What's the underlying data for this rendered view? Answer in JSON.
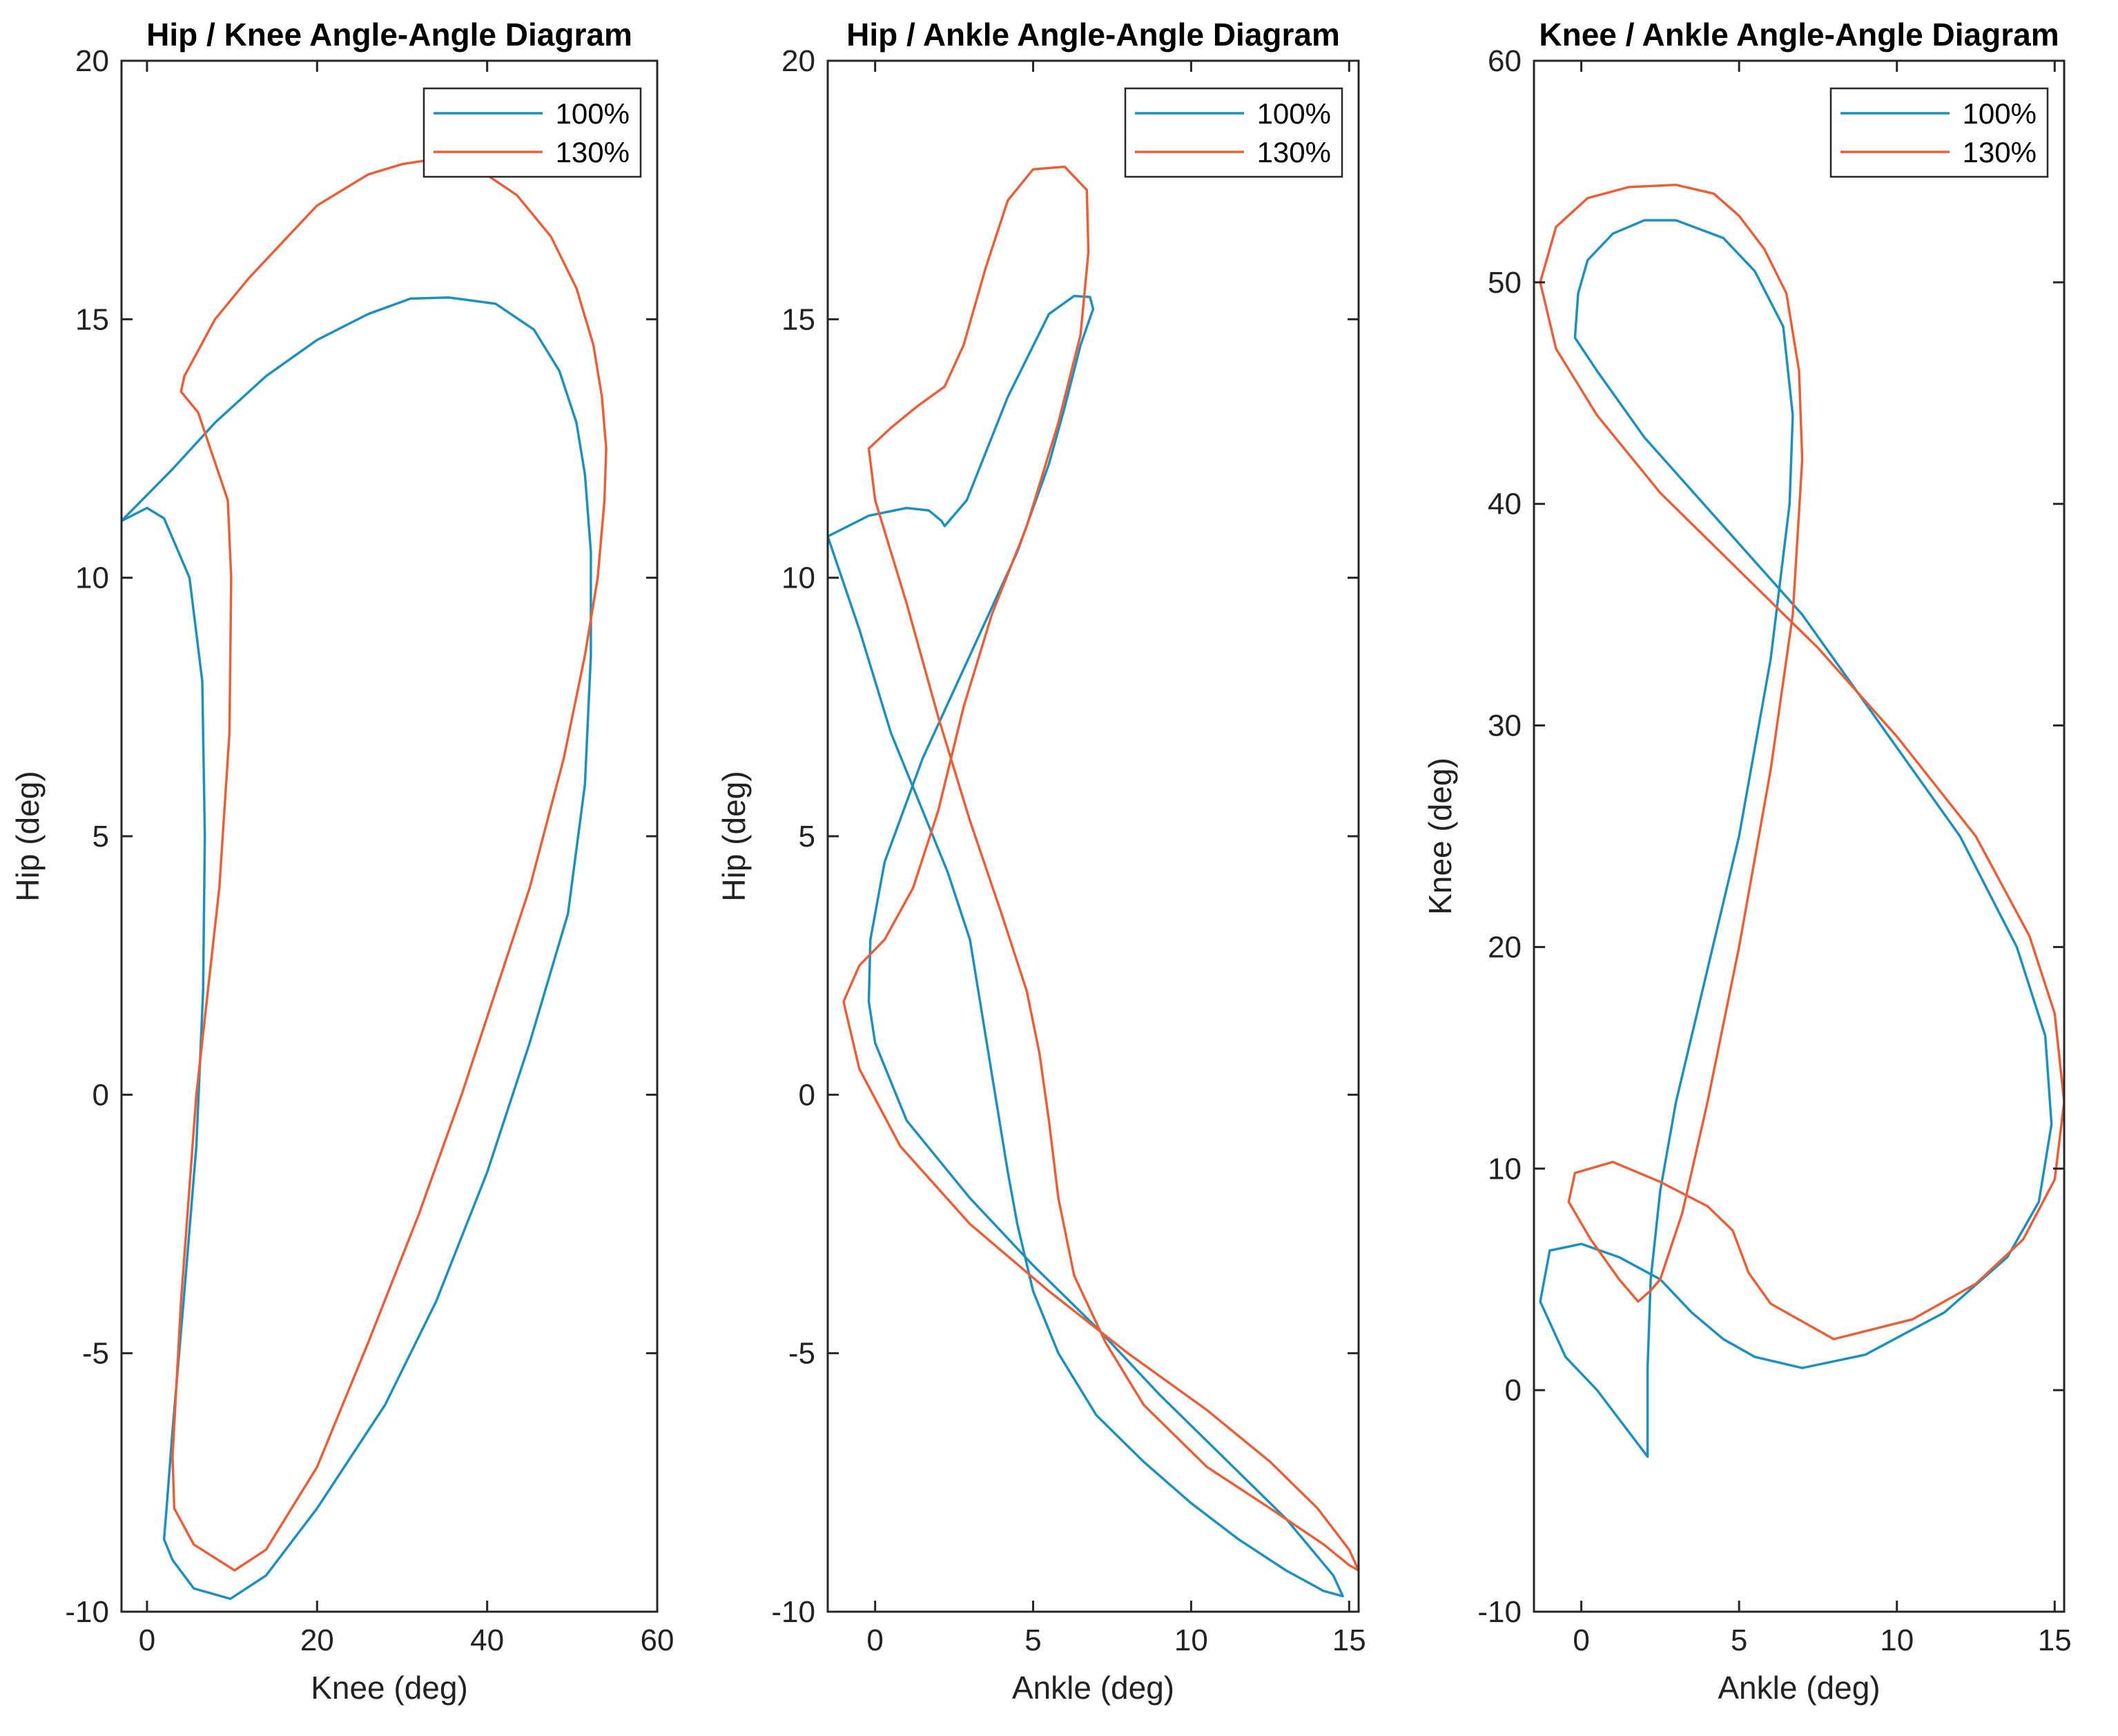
{
  "colors": {
    "series_100": "#1f8fbd",
    "series_130": "#e8603a"
  },
  "chart_data": [
    {
      "type": "line",
      "title": "Hip / Knee Angle-Angle Diagram",
      "xlabel": "Knee (deg)",
      "ylabel": "Hip (deg)",
      "xlim": [
        -3,
        60
      ],
      "ylim": [
        -10,
        20
      ],
      "xticks": [
        0,
        20,
        40,
        60
      ],
      "yticks": [
        -10,
        -5,
        0,
        5,
        10,
        15,
        20
      ],
      "legend_position": "top-right",
      "series": [
        {
          "name": "100%",
          "x": [
            -3,
            0,
            2,
            5,
            6.5,
            6.8,
            6.6,
            5.8,
            4.3,
            3,
            2.3,
            2,
            3,
            5.5,
            9.8,
            14,
            20,
            28,
            34,
            40,
            45,
            49.5,
            51.5,
            52.2,
            52.2,
            51.5,
            50.5,
            48.5,
            45.5,
            41,
            35.5,
            31,
            26,
            20,
            14,
            8,
            3,
            -3
          ],
          "y": [
            11.1,
            11.35,
            11.15,
            10,
            8,
            5,
            2,
            -1,
            -4,
            -6.5,
            -8,
            -8.6,
            -9,
            -9.55,
            -9.75,
            -9.3,
            -8,
            -6,
            -4,
            -1.5,
            1,
            3.5,
            6,
            8.5,
            10.5,
            12,
            13,
            14,
            14.8,
            15.3,
            15.42,
            15.4,
            15.1,
            14.6,
            13.9,
            13,
            12.1,
            11.1
          ]
        },
        {
          "name": "130%",
          "x": [
            6,
            9.5,
            9.9,
            9.7,
            8.5,
            5.8,
            4,
            3,
            3.2,
            5.5,
            10.3,
            14,
            20,
            26,
            32,
            37,
            41,
            45,
            49,
            51.5,
            53,
            53.8,
            54,
            53.5,
            52.5,
            50.5,
            47.5,
            43.5,
            39,
            34,
            30,
            26,
            20,
            16,
            12,
            8,
            4.4,
            4,
            6
          ],
          "y": [
            13.2,
            11.5,
            10,
            7,
            4,
            0,
            -4,
            -7,
            -8,
            -8.7,
            -9.2,
            -8.8,
            -7.2,
            -4.8,
            -2.3,
            0,
            2,
            4,
            6.5,
            8.5,
            10,
            11.5,
            12.5,
            13.5,
            14.5,
            15.6,
            16.6,
            17.4,
            17.9,
            18.1,
            18,
            17.8,
            17.2,
            16.5,
            15.8,
            15,
            13.9,
            13.6,
            13.2
          ]
        }
      ]
    },
    {
      "type": "line",
      "title": "Hip / Ankle Angle-Angle Diagram",
      "xlabel": "Ankle (deg)",
      "ylabel": "Hip (deg)",
      "xlim": [
        -1.5,
        15.3
      ],
      "ylim": [
        -10,
        20
      ],
      "xticks": [
        0,
        5,
        10,
        15
      ],
      "yticks": [
        -10,
        -5,
        0,
        5,
        10,
        15,
        20
      ],
      "legend_position": "top-right",
      "series": [
        {
          "name": "100%",
          "x": [
            2.1,
            1.7,
            1,
            -0.2,
            -1.5,
            -0.5,
            0.5,
            1.5,
            2.3,
            3,
            3.4,
            3.8,
            4.2,
            4.5,
            5,
            5.8,
            7,
            8.5,
            10,
            11.5,
            13,
            14.2,
            14.8,
            14.5,
            13,
            11,
            9,
            7,
            5,
            3,
            1,
            0,
            -0.2,
            -0.15,
            0.3,
            1.5,
            3,
            4.5,
            5.5,
            6,
            6.5,
            6.9,
            6.8,
            6.3,
            5.5,
            4.2,
            2.9,
            2.2,
            2.1
          ],
          "y": [
            11.1,
            11.3,
            11.35,
            11.2,
            10.8,
            9,
            7,
            5.5,
            4.3,
            3,
            1.5,
            0,
            -1.5,
            -2.5,
            -3.8,
            -5,
            -6.2,
            -7.1,
            -7.9,
            -8.6,
            -9.2,
            -9.6,
            -9.7,
            -9.3,
            -8.2,
            -7,
            -5.8,
            -4.5,
            -3.3,
            -2,
            -0.5,
            1,
            1.8,
            3,
            4.5,
            6.5,
            8.5,
            10.5,
            12.2,
            13.3,
            14.5,
            15.2,
            15.43,
            15.45,
            15.1,
            13.5,
            11.5,
            11,
            11.1
          ],
          "z": []
        },
        {
          "name": "130%",
          "x": [
            -0.2,
            0.5,
            1.3,
            2.2,
            2.8,
            3.5,
            4.2,
            5,
            6,
            6.7,
            6.75,
            6.5,
            5.8,
            4.8,
            3.7,
            2.8,
            2,
            1.2,
            0.3,
            -0.5,
            -1,
            -0.5,
            0.8,
            3,
            5.5,
            8,
            10.5,
            12.5,
            14,
            15,
            15.3,
            15,
            14.2,
            12.5,
            10.5,
            8.5,
            7.3,
            6.3,
            5.8,
            5.5,
            5.2,
            4.8,
            4,
            3,
            2,
            1,
            0,
            -0.2
          ],
          "y": [
            12.5,
            12.9,
            13.3,
            13.7,
            14.5,
            16,
            17.3,
            17.9,
            17.95,
            17.5,
            16.3,
            14.7,
            13,
            11,
            9.3,
            7.5,
            5.5,
            4,
            3,
            2.5,
            1.8,
            0.5,
            -1,
            -2.5,
            -3.8,
            -5,
            -6.1,
            -7.1,
            -8,
            -8.8,
            -9.2,
            -9.1,
            -8.7,
            -8,
            -7.2,
            -6,
            -4.8,
            -3.5,
            -2,
            -0.5,
            0.8,
            2,
            3.5,
            5.3,
            7.3,
            9.5,
            11.5,
            12.5
          ]
        }
      ]
    },
    {
      "type": "line",
      "title": "Knee / Ankle Angle-Angle Diagram",
      "xlabel": "Ankle (deg)",
      "ylabel": "Knee (deg)",
      "xlim": [
        -1.5,
        15.3
      ],
      "ylim": [
        -10,
        60
      ],
      "xticks": [
        0,
        5,
        10,
        15
      ],
      "yticks": [
        -10,
        0,
        10,
        20,
        30,
        40,
        50,
        60
      ],
      "legend_position": "top-right",
      "series": [
        {
          "name": "100%",
          "x": [
            2.1,
            1.3,
            0.5,
            -0.5,
            -1.3,
            -1,
            0,
            1.2,
            2.5,
            3.5,
            4.5,
            5.5,
            7,
            9,
            11.5,
            13.5,
            14.5,
            14.9,
            14.7,
            13.8,
            12,
            9.5,
            7,
            4.5,
            2,
            0.5,
            -0.2,
            -0.1,
            0.2,
            1,
            2,
            3,
            4.5,
            5.5,
            6.4,
            6.7,
            6.6,
            6,
            5,
            4,
            3,
            2.5,
            2.2,
            2.1,
            2.1
          ],
          "y": [
            -3,
            -1.5,
            0,
            1.5,
            4,
            6.3,
            6.6,
            6,
            5,
            3.5,
            2.3,
            1.5,
            1,
            1.6,
            3.5,
            6,
            8.5,
            12,
            16,
            20,
            25,
            30,
            35,
            39,
            43,
            46,
            47.5,
            49.5,
            51,
            52.2,
            52.8,
            52.8,
            52,
            50.5,
            48,
            44,
            40,
            33,
            25,
            19,
            13,
            9,
            5,
            1,
            -3
          ],
          "z": []
        },
        {
          "name": "130%",
          "x": [
            1.8,
            1.2,
            0.3,
            -0.4,
            -0.2,
            1,
            2.5,
            4,
            4.8,
            5.3,
            6,
            8,
            10.5,
            12.5,
            14,
            15,
            15.3,
            15,
            14.2,
            12.5,
            10,
            7.5,
            5,
            2.5,
            0.5,
            -0.8,
            -1.3,
            -0.8,
            0.2,
            1.5,
            3,
            4.2,
            5,
            5.8,
            6.5,
            6.9,
            7,
            6.7,
            6,
            5,
            4,
            3.2,
            2.5,
            2.2,
            1.8
          ],
          "y": [
            4,
            5,
            6.8,
            8.5,
            9.8,
            10.3,
            9.4,
            8.3,
            7.2,
            5.3,
            3.9,
            2.3,
            3.2,
            4.8,
            6.8,
            9.5,
            13,
            17,
            20.5,
            25,
            29.5,
            33.5,
            37,
            40.5,
            44,
            47,
            50,
            52.5,
            53.8,
            54.3,
            54.4,
            54,
            53,
            51.5,
            49.5,
            46,
            42,
            35,
            28,
            20,
            13,
            8,
            5,
            4.5,
            4
          ]
        }
      ]
    }
  ]
}
